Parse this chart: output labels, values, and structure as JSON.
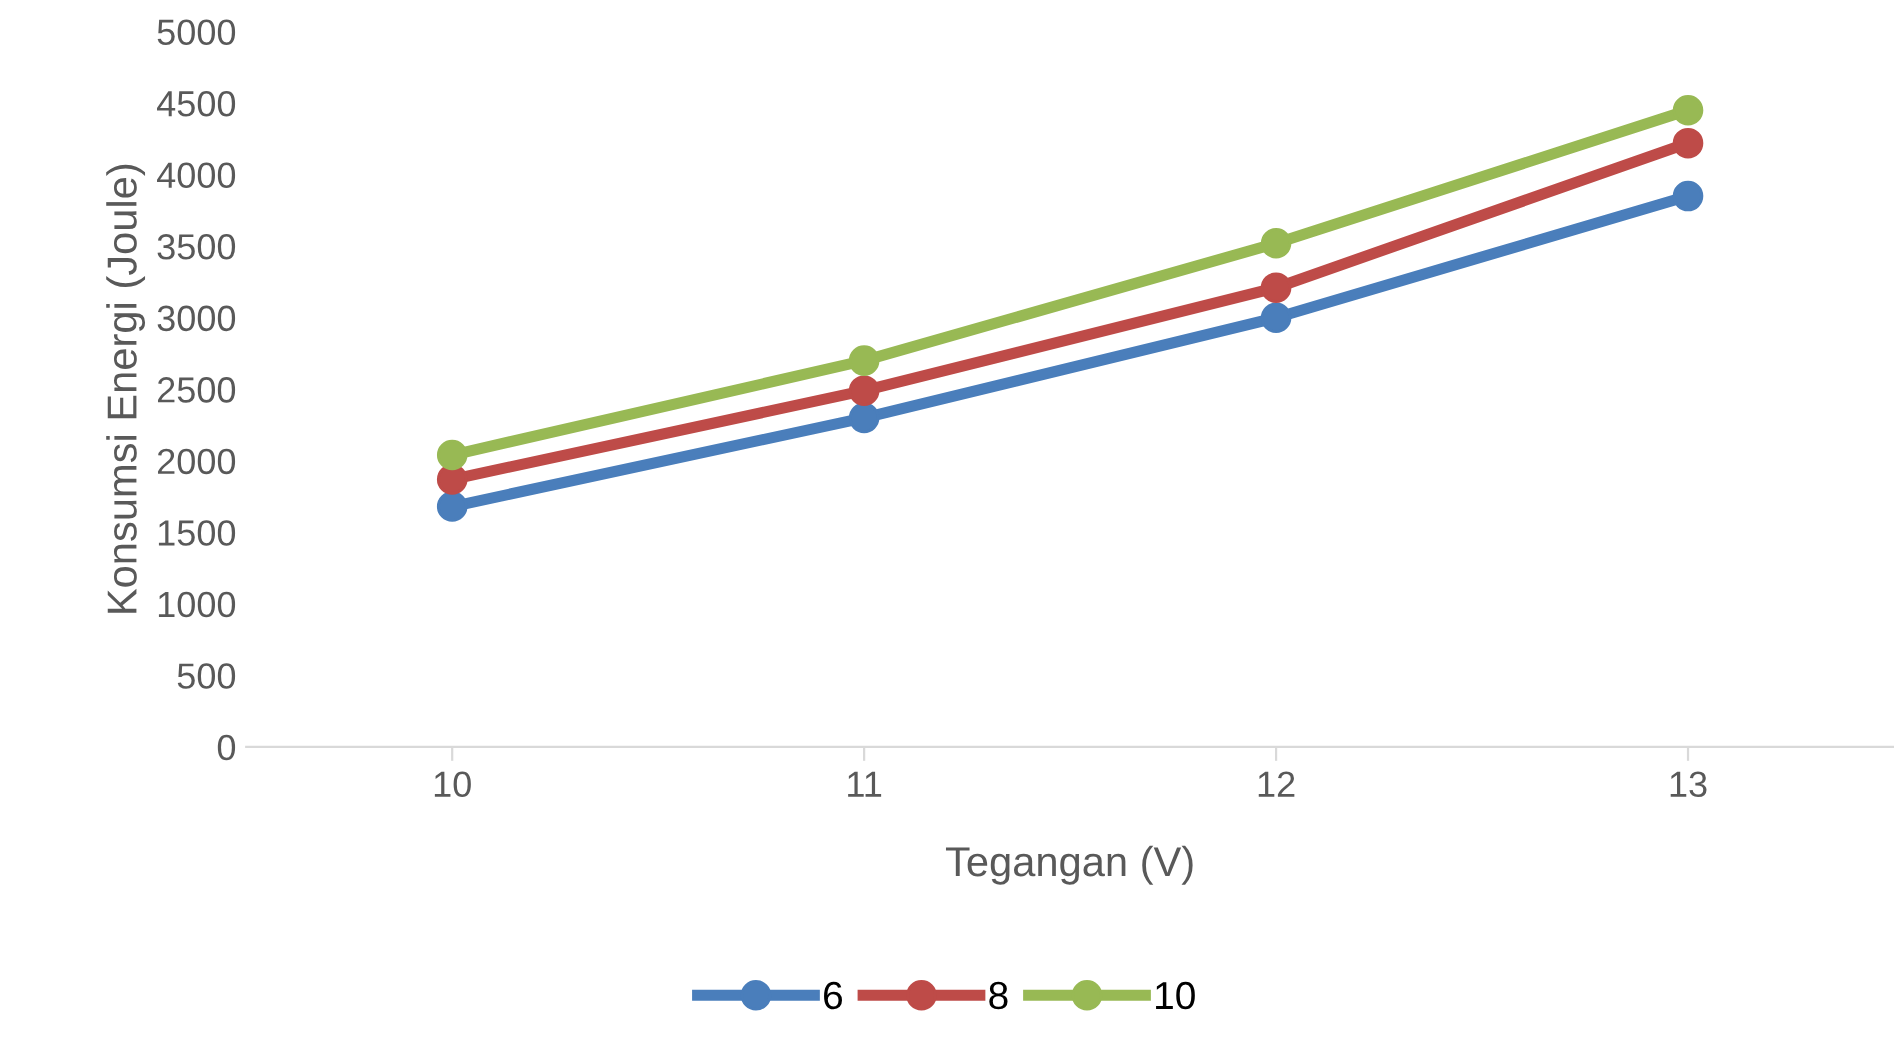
{
  "chart_data": {
    "type": "line",
    "xlabel": "Tegangan (V)",
    "ylabel": "Konsumsi Energi (Joule)",
    "categories": [
      "10",
      "11",
      "12",
      "13"
    ],
    "series": [
      {
        "name": "6",
        "color": "#4a7ebb",
        "values": [
          1680,
          2300,
          3000,
          3850
        ]
      },
      {
        "name": "8",
        "color": "#be4b48",
        "values": [
          1870,
          2490,
          3210,
          4220
        ]
      },
      {
        "name": "10",
        "color": "#98b954",
        "values": [
          2040,
          2700,
          3520,
          4450
        ]
      }
    ],
    "ylim": [
      0,
      5000
    ],
    "yticks": [
      0,
      500,
      1000,
      1500,
      2000,
      2500,
      3000,
      3500,
      4000,
      4500,
      5000
    ],
    "grid": false,
    "legend": "bottom",
    "marker": "circle",
    "line_style": "solid"
  }
}
